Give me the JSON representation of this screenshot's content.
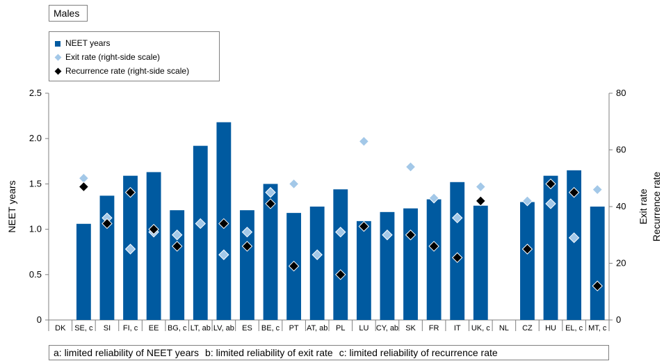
{
  "panel_title": "Males",
  "legend": [
    {
      "label": "NEET years",
      "marker": "bar"
    },
    {
      "label": "Exit rate (right-side scale)",
      "marker": "diamond-light"
    },
    {
      "label": "Recurrence rate (right-side scale)",
      "marker": "diamond-black"
    }
  ],
  "footnotes": [
    "a: limited reliability of NEET years",
    "b: limited reliability of exit rate",
    "c: limited reliability of recurrence rate"
  ],
  "colors": {
    "bar": "#005aa0",
    "exit": "#a3c8e8",
    "recurrence": "#000000",
    "axis": "#7f7f7f"
  },
  "chart_data": {
    "type": "bar",
    "title": "Males",
    "categories": [
      "DK",
      "SE, c",
      "SI",
      "FI, c",
      "EE",
      "BG, c",
      "LT, ab",
      "LV, ab",
      "ES",
      "BE, c",
      "PT",
      "AT, ab",
      "PL",
      "LU",
      "CY, ab",
      "SK",
      "FR",
      "IT",
      "UK, c",
      "NL",
      "CZ",
      "HU",
      "EL, c",
      "MT, c"
    ],
    "ylabel": "NEET years",
    "ylabel_right": [
      "Exit rate",
      "Recurrence rate"
    ],
    "ylim": [
      0,
      2.5
    ],
    "yticks": [
      "0",
      "0.5",
      "1.0",
      "1.5",
      "2.0",
      "2.5"
    ],
    "ylim_right": [
      0,
      80
    ],
    "yticks_right": [
      "0",
      "20",
      "40",
      "60",
      "80"
    ],
    "series": [
      {
        "name": "NEET years",
        "axis": "left",
        "kind": "bar",
        "values": [
          null,
          1.06,
          1.37,
          1.59,
          1.63,
          1.21,
          1.92,
          2.18,
          1.21,
          1.5,
          1.18,
          1.25,
          1.44,
          1.09,
          1.19,
          1.23,
          1.33,
          1.52,
          1.26,
          null,
          1.3,
          1.59,
          1.65,
          1.25
        ]
      },
      {
        "name": "Exit rate (right-side scale)",
        "axis": "right",
        "kind": "diamond",
        "values": [
          null,
          50,
          36,
          25,
          31,
          30,
          34,
          23,
          31,
          45,
          48,
          23,
          31,
          63,
          30,
          54,
          43,
          36,
          47,
          null,
          42,
          41,
          29,
          46
        ]
      },
      {
        "name": "Recurrence rate (right-side scale)",
        "axis": "right",
        "kind": "diamond",
        "values": [
          null,
          47,
          34,
          45,
          32,
          26,
          null,
          34,
          26,
          41,
          19,
          null,
          16,
          33,
          null,
          30,
          26,
          22,
          42,
          null,
          25,
          48,
          45,
          12
        ]
      }
    ],
    "grid": false,
    "legend_position": "top-left"
  }
}
